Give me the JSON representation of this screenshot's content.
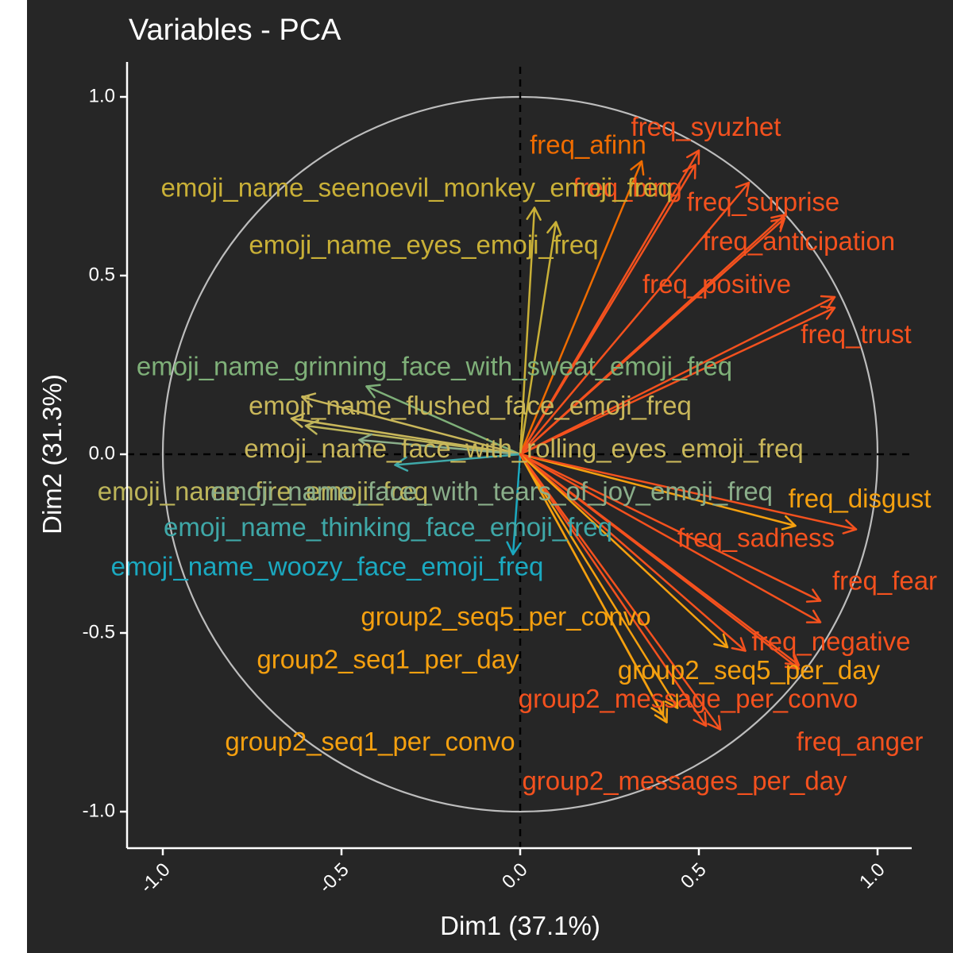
{
  "chart_data": {
    "type": "pca-variables",
    "title": "Variables - PCA",
    "xlabel": "Dim1 (37.1%)",
    "ylabel": "Dim2 (31.3%)",
    "xlim": [
      -1.1,
      1.1
    ],
    "ylim": [
      -1.1,
      1.1
    ],
    "x_ticks": [
      -1.0,
      -0.5,
      0.0,
      0.5,
      1.0
    ],
    "y_ticks": [
      -1.0,
      -0.5,
      0.0,
      0.5,
      1.0
    ],
    "x_tick_labels": [
      "-1.0",
      "-0.5",
      "0.0",
      "0.5",
      "1.0"
    ],
    "y_tick_labels": [
      "-1.0",
      "-0.5",
      "0.0",
      "0.5",
      "1.0"
    ],
    "unit_circle": true,
    "reference_lines": [
      0,
      0
    ],
    "grid": false,
    "colors": {
      "background": "#262626",
      "panel": "#262626",
      "circle": "#bdbdbd",
      "axis": "#ffffff",
      "reference_line": "#000000"
    },
    "variables": [
      {
        "name": "freq_syuzhet",
        "x": 0.5,
        "y": 0.85,
        "lx": 0.52,
        "ly": 0.91,
        "color": "#f4511e"
      },
      {
        "name": "freq_afinn",
        "x": 0.34,
        "y": 0.82,
        "lx": 0.19,
        "ly": 0.86,
        "color": "#ef6c00"
      },
      {
        "name": "freq_bing",
        "x": 0.49,
        "y": 0.81,
        "lx": 0.3,
        "ly": 0.74,
        "color": "#f4511e"
      },
      {
        "name": "freq_surprise",
        "x": 0.64,
        "y": 0.76,
        "lx": 0.68,
        "ly": 0.7,
        "color": "#f4511e"
      },
      {
        "name": "freq_anticipation",
        "x": 0.74,
        "y": 0.67,
        "lx": 0.78,
        "ly": 0.59,
        "color": "#f4511e"
      },
      {
        "name": "freq_positive",
        "x": 0.74,
        "y": 0.66,
        "lx": 0.55,
        "ly": 0.47,
        "color": "#f4511e"
      },
      {
        "name": "freq_trust",
        "x": 0.88,
        "y": 0.44,
        "lx": 0.94,
        "ly": 0.33,
        "color": "#f4511e"
      },
      {
        "name": "freq_trust",
        "x": 0.88,
        "y": 0.41,
        "lx": 0.94,
        "ly": 0.33,
        "color": "#f4511e"
      },
      {
        "name": "emoji_name_seenoevil_monkey_emoji_freq",
        "x": 0.04,
        "y": 0.69,
        "lx": -0.29,
        "ly": 0.74,
        "color": "#c9b037"
      },
      {
        "name": "emoji_name_eyes_emoji_freq",
        "x": 0.1,
        "y": 0.65,
        "lx": -0.27,
        "ly": 0.58,
        "color": "#c9b037"
      },
      {
        "name": "emoji_name_grinning_face_with_sweat_emoji_freq",
        "x": -0.43,
        "y": 0.19,
        "lx": -0.24,
        "ly": 0.24,
        "color": "#7fb079"
      },
      {
        "name": "emoji_name_flushed_face_emoji_freq",
        "x": -0.61,
        "y": 0.16,
        "lx": -0.14,
        "ly": 0.13,
        "color": "#c9b75a"
      },
      {
        "name": "emoji_name_face_with_rolling_eyes_emoji_freq",
        "x": -0.64,
        "y": 0.1,
        "lx": 0.01,
        "ly": 0.01,
        "color": "#c9b75a"
      },
      {
        "name": "emoji_name_fire_emoji_freq",
        "x": -0.6,
        "y": 0.08,
        "lx": -0.72,
        "ly": -0.11,
        "color": "#bdb55a"
      },
      {
        "name": "emoji_name_face_with_tears_of_joy_emoji_freq",
        "x": -0.45,
        "y": 0.04,
        "lx": -0.08,
        "ly": -0.11,
        "color": "#8aae8a"
      },
      {
        "name": "emoji_name_thinking_face_emoji_freq",
        "x": -0.35,
        "y": -0.03,
        "lx": -0.37,
        "ly": -0.21,
        "color": "#3fa8a8"
      },
      {
        "name": "emoji_name_woozy_face_emoji_freq",
        "x": -0.02,
        "y": -0.28,
        "lx": -0.54,
        "ly": -0.32,
        "color": "#1ba9c0"
      },
      {
        "name": "freq_disgust",
        "x": 0.77,
        "y": -0.2,
        "lx": 0.95,
        "ly": -0.13,
        "color": "#f5a00f"
      },
      {
        "name": "freq_sadness",
        "x": 0.94,
        "y": -0.21,
        "lx": 0.66,
        "ly": -0.24,
        "color": "#f4511e"
      },
      {
        "name": "freq_fear",
        "x": 0.84,
        "y": -0.41,
        "lx": 1.02,
        "ly": -0.36,
        "color": "#f4511e"
      },
      {
        "name": "freq_fear",
        "x": 0.84,
        "y": -0.47,
        "lx": 1.02,
        "ly": -0.36,
        "color": "#f4511e"
      },
      {
        "name": "freq_negative",
        "x": 0.63,
        "y": -0.55,
        "lx": 0.87,
        "ly": -0.53,
        "color": "#f4511e"
      },
      {
        "name": "freq_negative",
        "x": 0.78,
        "y": -0.6,
        "lx": 0.87,
        "ly": -0.53,
        "color": "#f4511e"
      },
      {
        "name": "freq_anger",
        "x": 0.78,
        "y": -0.59,
        "lx": 0.95,
        "ly": -0.81,
        "color": "#f4511e"
      },
      {
        "name": "group2_seq5_per_convo",
        "x": 0.58,
        "y": -0.54,
        "lx": -0.04,
        "ly": -0.46,
        "color": "#f5a00f"
      },
      {
        "name": "group2_seq5_per_day",
        "x": 0.44,
        "y": -0.71,
        "lx": 0.64,
        "ly": -0.61,
        "color": "#f5a00f"
      },
      {
        "name": "group2_seq1_per_day",
        "x": 0.4,
        "y": -0.73,
        "lx": -0.37,
        "ly": -0.58,
        "color": "#f5a00f"
      },
      {
        "name": "group2_message_per_convo",
        "x": 0.52,
        "y": -0.76,
        "lx": 0.47,
        "ly": -0.69,
        "color": "#f4511e"
      },
      {
        "name": "group2_seq1_per_convo",
        "x": 0.41,
        "y": -0.75,
        "lx": -0.42,
        "ly": -0.81,
        "color": "#f5a00f"
      },
      {
        "name": "group2_messages_per_day",
        "x": 0.56,
        "y": -0.77,
        "lx": 0.46,
        "ly": -0.92,
        "color": "#f4511e"
      }
    ]
  }
}
